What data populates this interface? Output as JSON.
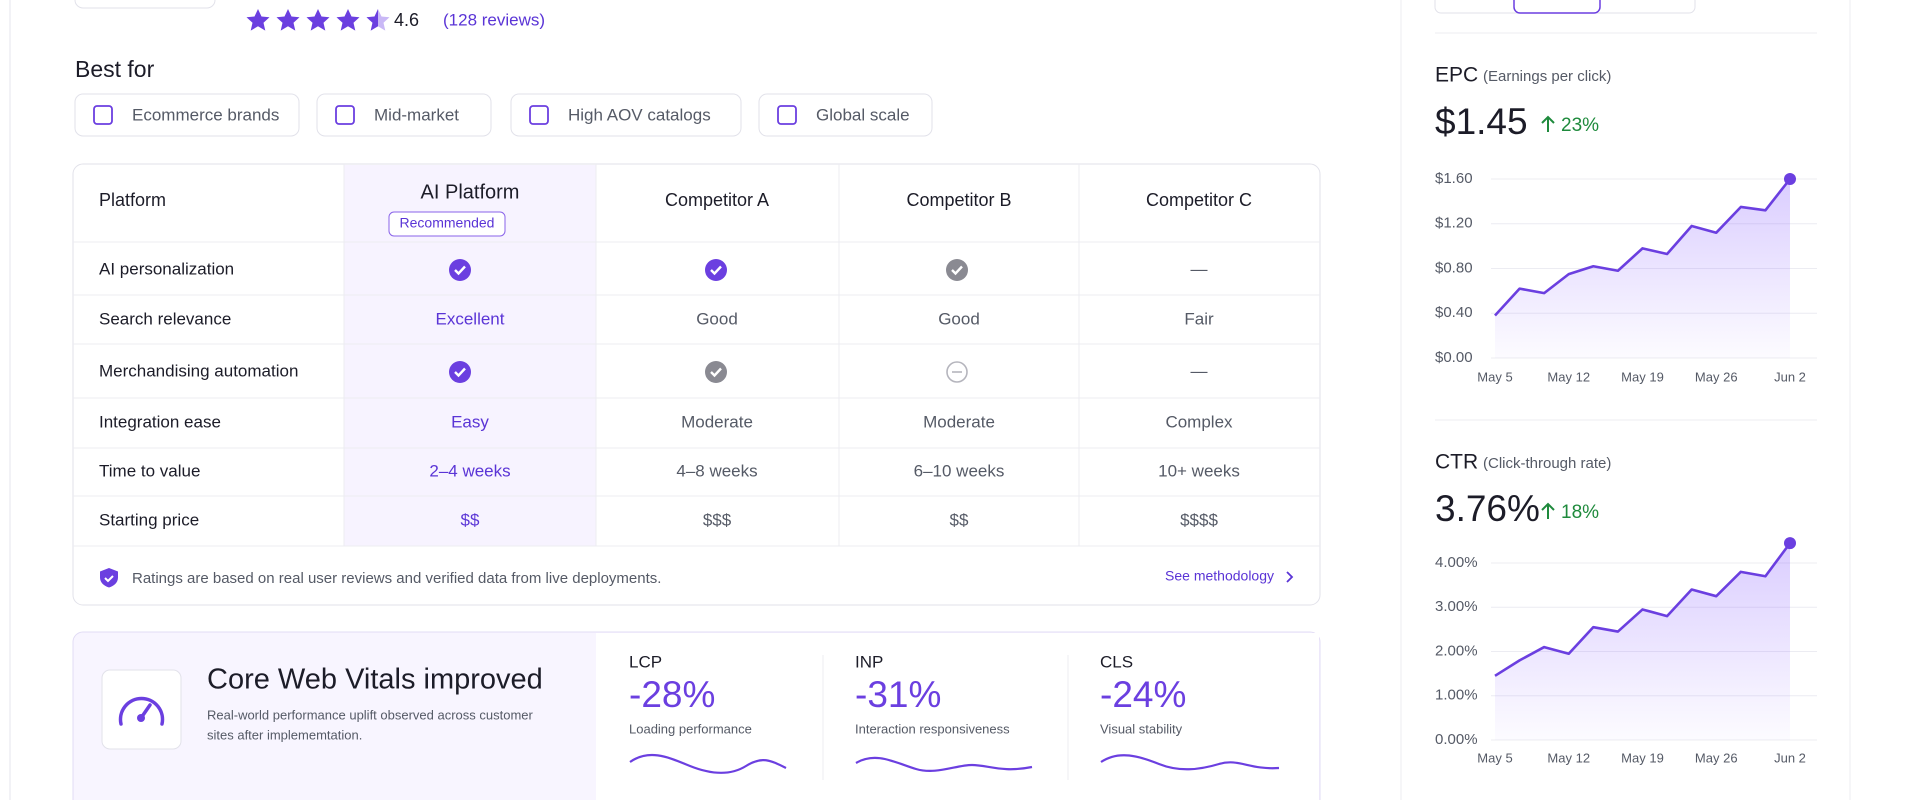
{
  "rating": {
    "score": "4.6",
    "reviews": "(128 reviews)"
  },
  "best_for": {
    "title": "Best for",
    "chips": [
      "Ecommerce brands",
      "Mid-market",
      "High AOV catalogs",
      "Global scale"
    ]
  },
  "table": {
    "header": [
      "Platform",
      "AI Platform",
      "Competitor A",
      "Competitor B",
      "Competitor C"
    ],
    "badge": "Recommended",
    "rows": [
      [
        "AI personalization",
        null,
        null,
        null,
        "—"
      ],
      [
        "Search relevance",
        "Excellent",
        "Good",
        "Good",
        "Fair"
      ],
      [
        "Merchandising automation",
        null,
        null,
        null,
        "—"
      ],
      [
        "Integration ease",
        "Easy",
        "Moderate",
        "Moderate",
        "Complex"
      ],
      [
        "Time to value",
        "2–4 weeks",
        "4–8 weeks",
        "6–10 weeks",
        "10+ weeks"
      ],
      [
        "Starting price",
        "$$",
        "$$$",
        "$$",
        "$$$$"
      ]
    ],
    "note": "Ratings are based on real user reviews and verified data from live deployments.",
    "link": "See methodology"
  },
  "vitals": {
    "title": "Core Web Vitals improved",
    "subtitle": [
      "Real-world performance uplift observed across customer",
      "sites after implememtation."
    ],
    "metrics": [
      {
        "name": "LCP",
        "value": "-28%",
        "label": "Loading performance"
      },
      {
        "name": "INP",
        "value": "-31%",
        "label": "Interaction responsiveness"
      },
      {
        "name": "CLS",
        "value": "-24%",
        "label": "Visual stability"
      }
    ]
  },
  "chart_data": [
    {
      "type": "line",
      "title": "EPC",
      "subtitle": "(Earnings per click)",
      "value": "$1.45",
      "change": "23%",
      "color": "#6b3fe0",
      "categories": [
        "May 5",
        null,
        null,
        "May 12",
        null,
        null,
        "May 19",
        null,
        null,
        "May 26",
        null,
        null,
        "Jun 2"
      ],
      "values": [
        0.38,
        0.62,
        0.58,
        0.75,
        0.82,
        0.78,
        0.98,
        0.93,
        1.18,
        1.12,
        1.35,
        1.32,
        1.6
      ],
      "ylim": [
        0,
        1.65
      ],
      "yticks": [
        {
          "value": 0,
          "label": "$0.00"
        },
        {
          "value": 0.4,
          "label": "$0.40"
        },
        {
          "value": 0.8,
          "label": "$0.80"
        },
        {
          "value": 1.2,
          "label": "$1.20"
        },
        {
          "value": 1.6,
          "label": "$1.60"
        }
      ],
      "grid": true
    },
    {
      "type": "line",
      "title": "CTR",
      "subtitle": "(Click-through rate)",
      "value": "3.76%",
      "change": "18%",
      "color": "#6b3fe0",
      "categories": [
        "May 5",
        null,
        null,
        "May 12",
        null,
        null,
        "May 19",
        null,
        null,
        "May 26",
        null,
        null,
        "Jun 2"
      ],
      "values": [
        1.45,
        1.8,
        2.1,
        1.95,
        2.55,
        2.45,
        2.95,
        2.8,
        3.4,
        3.25,
        3.8,
        3.7,
        4.45
      ],
      "ylim": [
        0,
        4.5
      ],
      "yticks": [
        {
          "value": 0,
          "label": "0.00%"
        },
        {
          "value": 1,
          "label": "1.00%"
        },
        {
          "value": 2,
          "label": "2.00%"
        },
        {
          "value": 3,
          "label": "3.00%"
        },
        {
          "value": 4,
          "label": "4.00%"
        }
      ],
      "grid": true
    }
  ]
}
